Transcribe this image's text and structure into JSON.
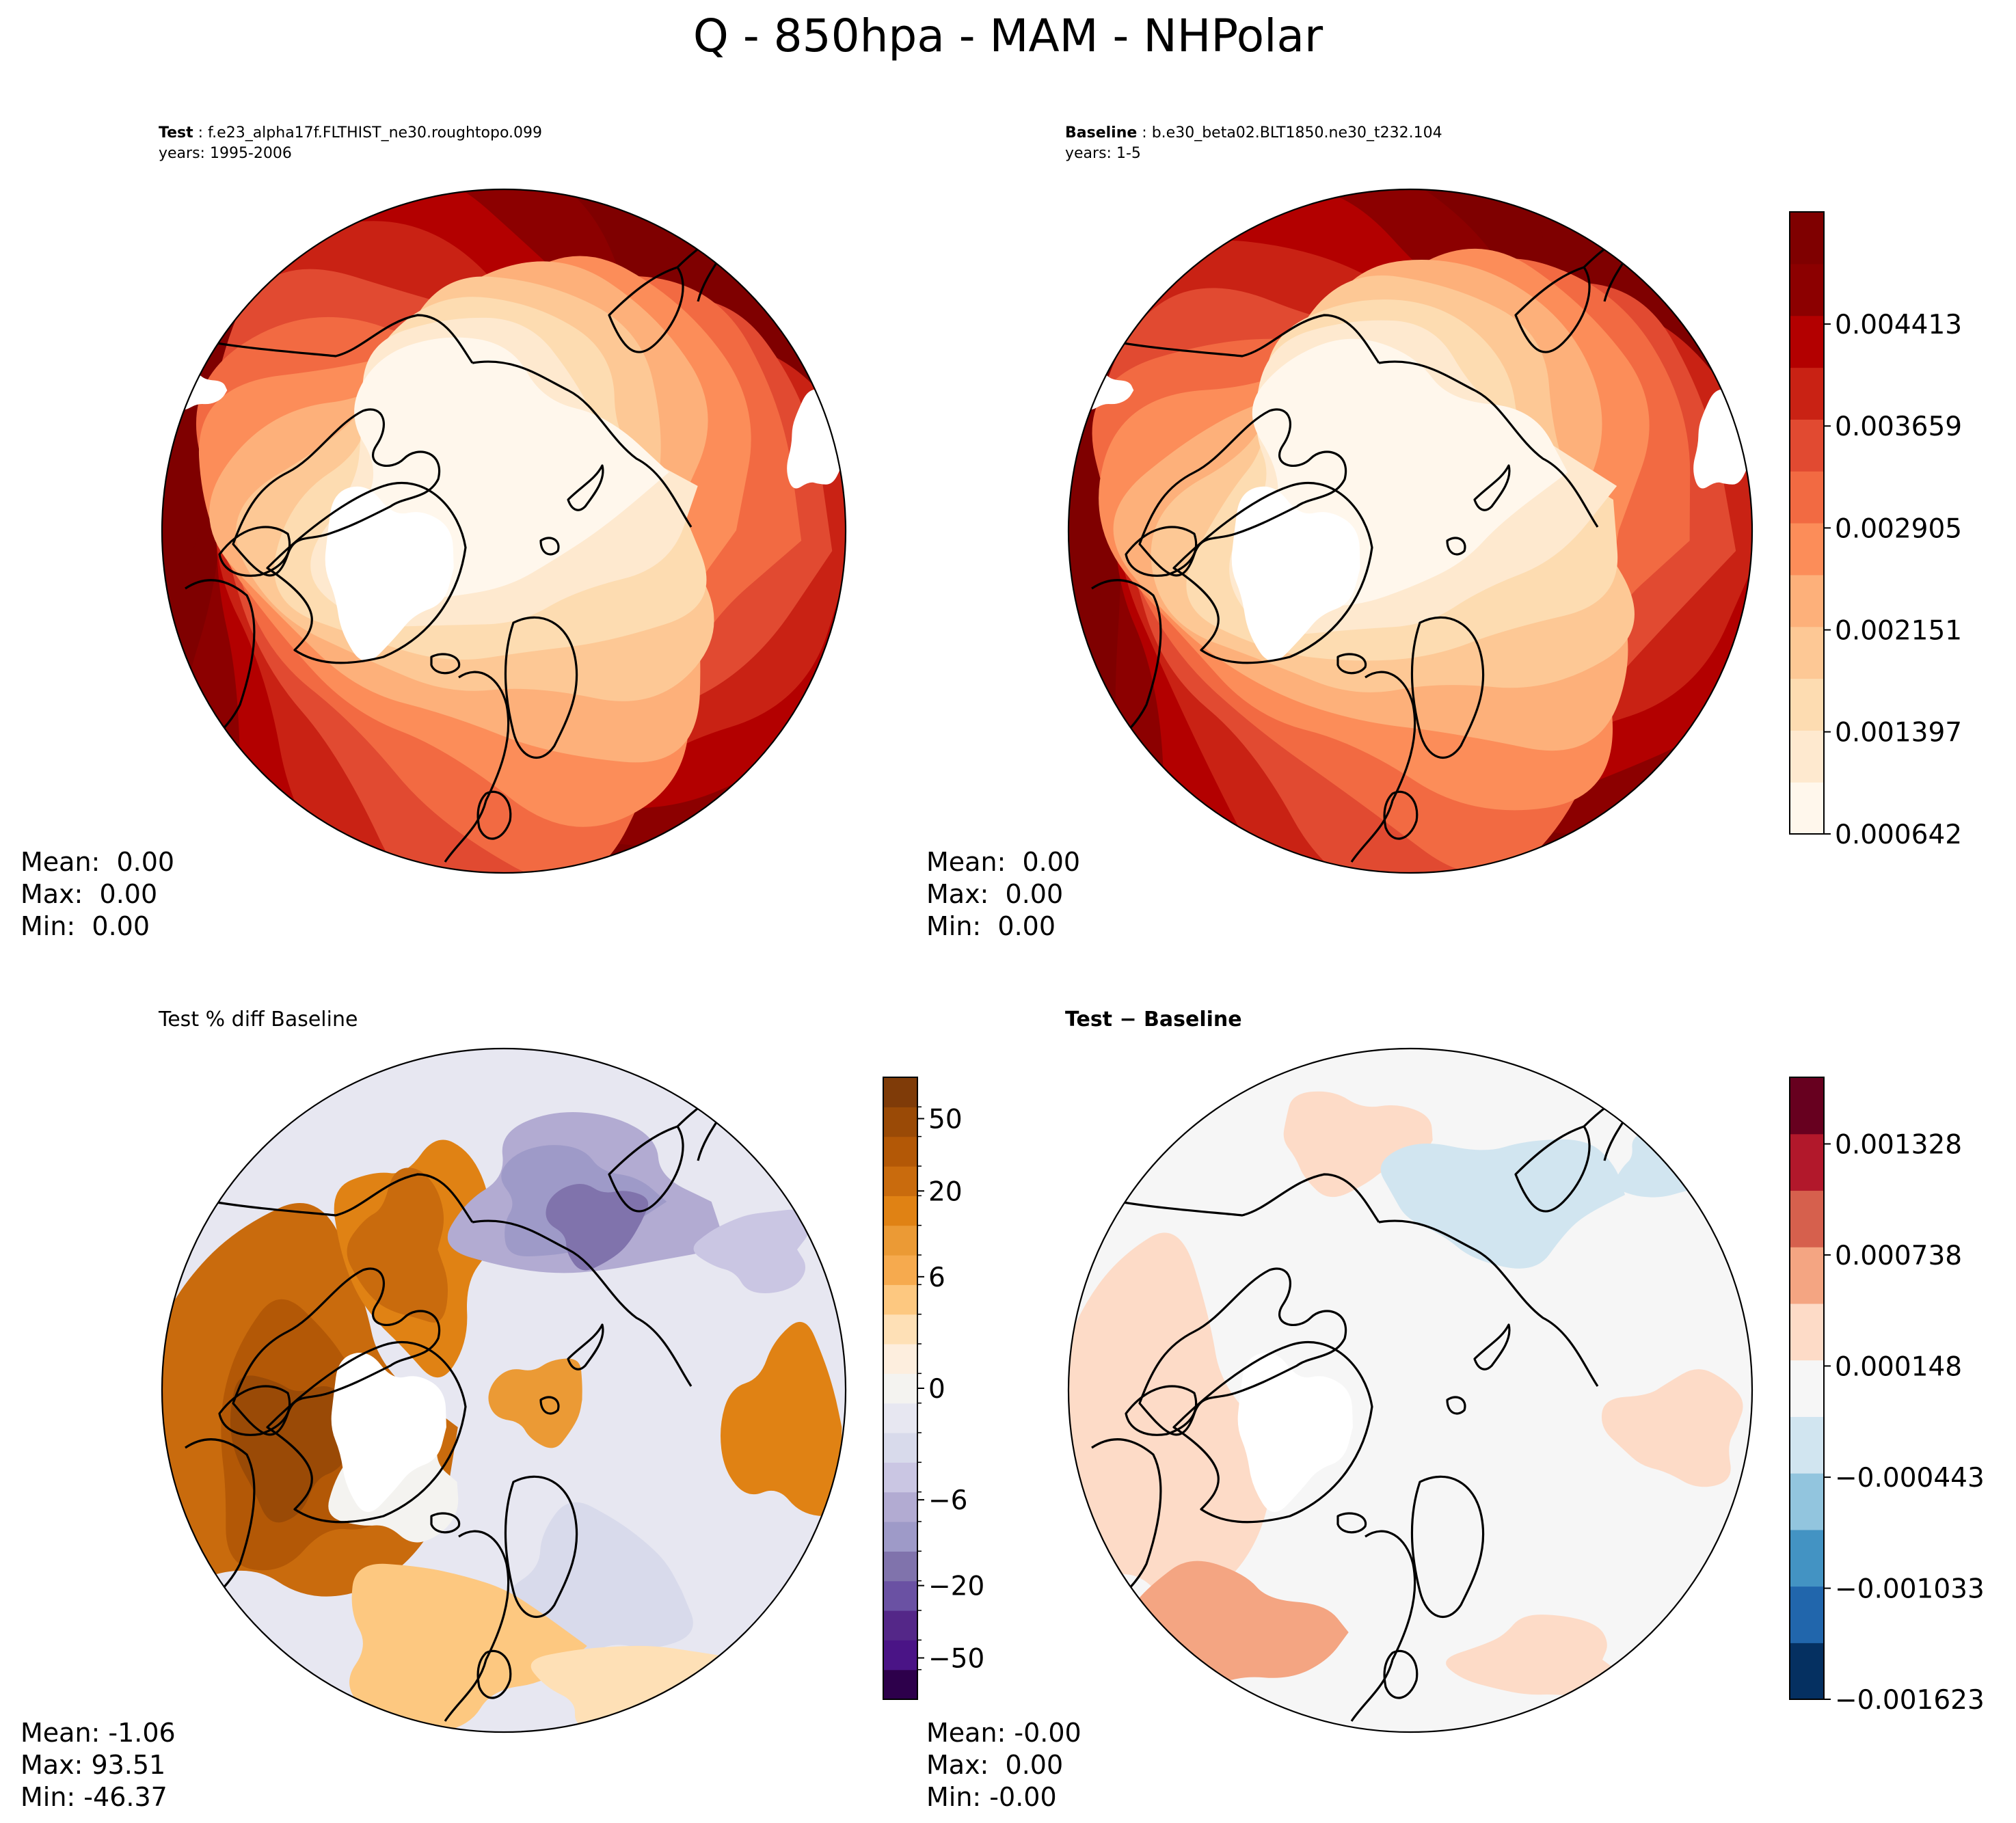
{
  "figure": {
    "title": "Q - 850hpa - MAM - NHPolar"
  },
  "colors": {
    "coastline": "#000000",
    "land_ice": "#ffffff",
    "orrd": [
      "#fff7ec",
      "#fee9cf",
      "#fddcb1",
      "#fdc895",
      "#fdb07a",
      "#fc8d59",
      "#f26a42",
      "#e14a31",
      "#c92214",
      "#b30000",
      "#8c0000",
      "#7f0000"
    ],
    "puor": [
      "#2d004b",
      "#4a1486",
      "#542788",
      "#6a51a3",
      "#8073ac",
      "#9e9ac8",
      "#b2abd2",
      "#cac6e3",
      "#d8daeb",
      "#e7e7f1",
      "#f4f3f0",
      "#fdeede",
      "#fee0b6",
      "#fdc880",
      "#f6aa4e",
      "#eb9a35",
      "#e08214",
      "#c96b0d",
      "#b35806",
      "#9a4a06",
      "#7f3b08"
    ],
    "rdbu": [
      "#053061",
      "#2166ac",
      "#4393c3",
      "#92c5de",
      "#d1e5f0",
      "#f6f6f6",
      "#fddbc7",
      "#f4a582",
      "#d6604d",
      "#b2182b",
      "#67001f"
    ]
  },
  "panels": [
    {
      "id": "test",
      "title_label": "Test",
      "title_name": "f.e23_alpha17f.FLTHIST_ne30.roughtopo.099",
      "years": "years: 1995-2006",
      "stats": {
        "mean": "Mean:  0.00",
        "max": "Max:  0.00",
        "min": "Min:  0.00"
      }
    },
    {
      "id": "baseline",
      "title_label": "Baseline",
      "title_name": "b.e30_beta02.BLT1850.ne30_t232.104",
      "years": "years: 1-5",
      "stats": {
        "mean": "Mean:  0.00",
        "max": "Max:  0.00",
        "min": "Min:  0.00"
      }
    },
    {
      "id": "pct_diff",
      "title": "Test % diff Baseline",
      "stats": {
        "mean": "Mean: -1.06",
        "max": "Max: 93.51",
        "min": "Min: -46.37"
      }
    },
    {
      "id": "diff",
      "title_label": "Test − Baseline",
      "stats": {
        "mean": "Mean: -0.00",
        "max": "Max:  0.00",
        "min": "Min: -0.00"
      }
    }
  ],
  "chart_data": [
    {
      "type": "heatmap",
      "projection": "north-polar-stereographic",
      "title": "Test: f.e23_alpha17f.FLTHIST_ne30.roughtopo.099",
      "field": "Q at 850 hPa, MAM",
      "pattern": "low specific humidity (~0.0006–0.0014) over the Arctic Ocean, rising to ~0.004–0.0048 toward the mid-latitude rim (highest over Europe/Mediterranean and the East Asian sector); white areas are missing data over high terrain (Greenland, Tibet, Rockies)",
      "stats": {
        "mean": 0.0,
        "max": 0.0,
        "min": 0.0
      }
    },
    {
      "type": "heatmap",
      "projection": "north-polar-stereographic",
      "title": "Baseline: b.e30_beta02.BLT1850.ne30_t232.104",
      "field": "Q at 850 hPa, MAM",
      "pattern": "same structure as Test: dry Arctic core, moist mid-latitude rim",
      "stats": {
        "mean": 0.0,
        "max": 0.0,
        "min": 0.0
      },
      "colorbar": {
        "cmap": "OrRd",
        "levels": 12,
        "ticks": [
          0.000642,
          0.001397,
          0.002151,
          0.002905,
          0.003659,
          0.004413
        ],
        "tick_labels": [
          "0.000642",
          "0.001397",
          "0.002151",
          "0.002905",
          "0.003659",
          "0.004413"
        ]
      }
    },
    {
      "type": "heatmap",
      "projection": "north-polar-stereographic",
      "title": "Test % diff Baseline",
      "pattern": "positive (+6 to +30%) over North America, the Canadian Arctic and central Asia; negative (−6 to −20%) over eastern Siberia and parts of Europe",
      "stats": {
        "mean": -1.06,
        "max": 93.51,
        "min": -46.37
      },
      "colorbar": {
        "cmap": "PuOr_r",
        "ticks": [
          -50,
          -20,
          -6,
          0,
          6,
          20,
          50
        ],
        "tick_labels": [
          "−50",
          "−20",
          "−6",
          "0",
          "6",
          "20",
          "50"
        ]
      }
    },
    {
      "type": "heatmap",
      "projection": "north-polar-stereographic",
      "title": "Test − Baseline",
      "pattern": "near zero almost everywhere; weak positive (+0.00015 to +0.0007) over North America and the Atlantic, weak negative over eastern Siberia",
      "stats": {
        "mean": -0.0,
        "max": 0.0,
        "min": -0.0
      },
      "colorbar": {
        "cmap": "RdBu_r",
        "ticks": [
          -0.001623,
          -0.001033,
          -0.000443,
          0.000148,
          0.000738,
          0.001328
        ],
        "tick_labels": [
          "−0.001623",
          "−0.001033",
          "−0.000443",
          "0.000148",
          "0.000738",
          "0.001328"
        ]
      }
    }
  ]
}
